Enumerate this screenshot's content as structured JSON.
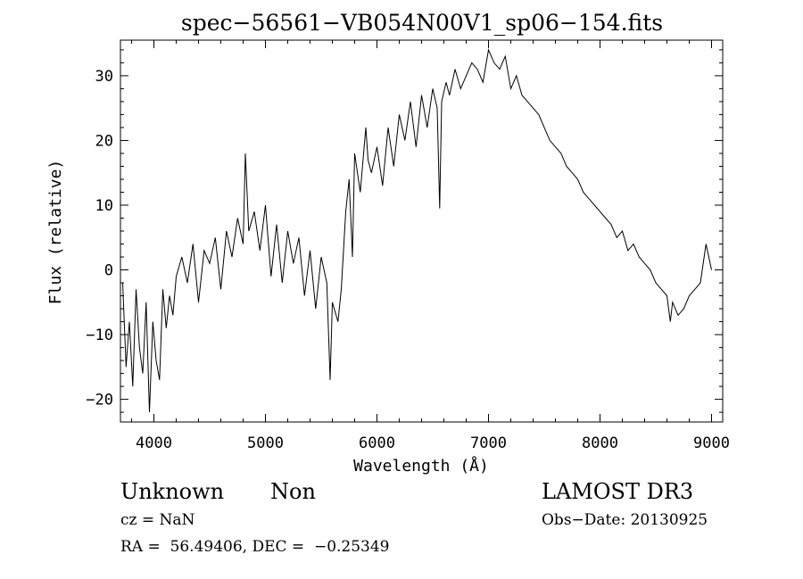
{
  "chart_data": {
    "type": "line",
    "title": "spec−56561−VB054N00V1_sp06−154.fits",
    "xlabel": "Wavelength (Å)",
    "ylabel": "Flux (relative)",
    "xlim": [
      3700,
      9100
    ],
    "ylim": [
      -23.5,
      35.5
    ],
    "x_ticks": [
      4000,
      5000,
      6000,
      7000,
      8000,
      9000
    ],
    "y_ticks": [
      -20,
      -10,
      0,
      10,
      20,
      30
    ],
    "x_tick_labels": [
      "4000",
      "5000",
      "6000",
      "7000",
      "8000",
      "9000"
    ],
    "y_tick_labels": [
      "−20",
      "−10",
      "0",
      "10",
      "20",
      "30"
    ],
    "grid": false,
    "series": [
      {
        "color": "#000000",
        "x": [
          3720,
          3750,
          3780,
          3810,
          3840,
          3870,
          3900,
          3930,
          3960,
          3990,
          4020,
          4050,
          4080,
          4110,
          4140,
          4170,
          4200,
          4250,
          4300,
          4350,
          4400,
          4450,
          4500,
          4550,
          4600,
          4650,
          4700,
          4750,
          4800,
          4820,
          4850,
          4900,
          4950,
          5000,
          5050,
          5100,
          5150,
          5200,
          5250,
          5300,
          5350,
          5400,
          5450,
          5500,
          5550,
          5580,
          5600,
          5650,
          5680,
          5700,
          5720,
          5750,
          5780,
          5800,
          5850,
          5900,
          5920,
          5950,
          6000,
          6050,
          6100,
          6150,
          6200,
          6250,
          6300,
          6350,
          6400,
          6450,
          6500,
          6540,
          6562,
          6580,
          6620,
          6650,
          6700,
          6750,
          6800,
          6850,
          6900,
          6950,
          7000,
          7050,
          7100,
          7150,
          7200,
          7250,
          7300,
          7350,
          7400,
          7450,
          7500,
          7550,
          7600,
          7650,
          7700,
          7750,
          7800,
          7850,
          7900,
          7950,
          8000,
          8050,
          8100,
          8150,
          8200,
          8250,
          8300,
          8350,
          8400,
          8450,
          8500,
          8550,
          8600,
          8630,
          8650,
          8700,
          8750,
          8800,
          8850,
          8900,
          8950,
          9000
        ],
        "y": [
          -2,
          -15,
          -8,
          -18,
          -3,
          -12,
          -16,
          -5,
          -22,
          -8,
          -14,
          -17,
          -3,
          -9,
          -4,
          -7,
          -1,
          2,
          -2,
          4,
          -5,
          3,
          1,
          5,
          -3,
          6,
          2,
          8,
          4,
          18,
          6,
          9,
          3,
          10,
          -1,
          7,
          -2,
          6,
          1,
          5,
          -4,
          3,
          -6,
          2,
          -2,
          -17,
          -5,
          -8,
          -3,
          3,
          9,
          14,
          2,
          18,
          12,
          22,
          17,
          15,
          19,
          13,
          22,
          16,
          24,
          20,
          26,
          19,
          27,
          22,
          28,
          25,
          9.5,
          26,
          29,
          27,
          31,
          28,
          30,
          32,
          31,
          29,
          34,
          32,
          31,
          33,
          28,
          30,
          27,
          26,
          25,
          24,
          22,
          20,
          19,
          18,
          16,
          15,
          14,
          12,
          11,
          10,
          9,
          8,
          7,
          5,
          6,
          3,
          4,
          2,
          1,
          0,
          -2,
          -3,
          -4,
          -8,
          -5,
          -7,
          -6,
          -4,
          -3,
          -2,
          4,
          0
        ]
      }
    ]
  },
  "info": {
    "object_class": "Unknown",
    "object_subclass": "Non",
    "survey": "LAMOST DR3",
    "redshift": "cz = NaN",
    "obs_date": "Obs−Date: 20130925",
    "coords": "RA =  56.49406, DEC =  −0.25349"
  }
}
